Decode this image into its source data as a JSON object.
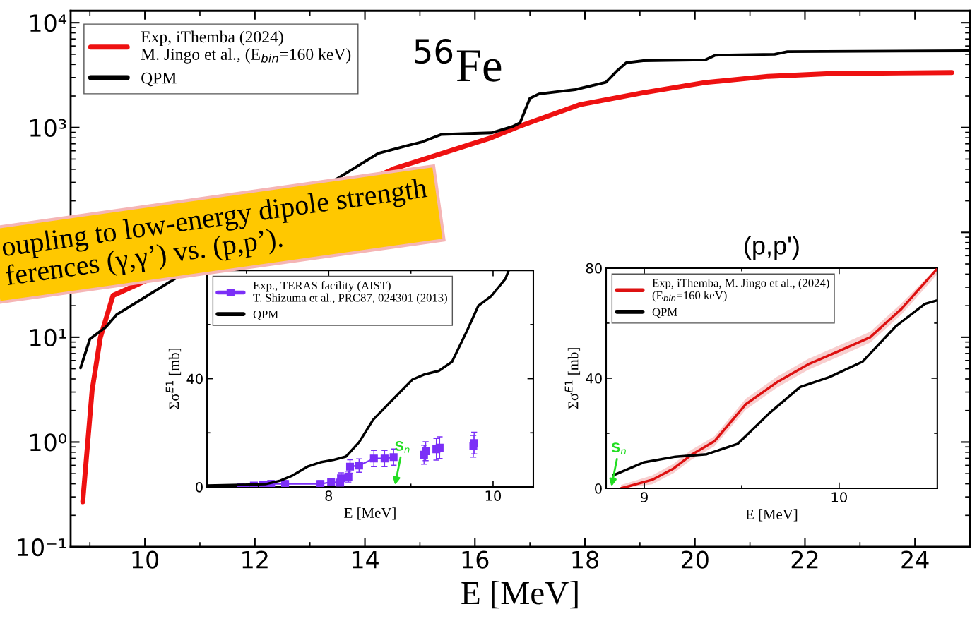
{
  "chart_data": [
    {
      "type": "line",
      "title": "$^{56}$Fe",
      "xlabel": "E [MeV]",
      "log": "y",
      "legend": "top left",
      "grid": false,
      "xlim": [
        8.65,
        25
      ],
      "xticks": [
        {
          "value": 9,
          "label": null
        },
        10,
        {
          "value": 11,
          "label": null
        },
        12,
        {
          "value": 13,
          "label": null
        },
        14,
        {
          "value": 15,
          "label": null
        },
        16,
        {
          "value": 17,
          "label": null
        },
        18,
        {
          "value": 19,
          "label": null
        },
        20,
        {
          "value": 21,
          "label": null
        },
        22,
        {
          "value": 23,
          "label": null
        },
        24
      ],
      "ylim": [
        0.1,
        13000
      ],
      "yticks": [
        {
          "value": 0.1,
          "label": "10⁻¹"
        },
        {
          "value": 1,
          "label": "10⁰"
        },
        {
          "value": 10,
          "label": "10¹"
        },
        {
          "value": 100,
          "label": null
        },
        {
          "value": 1000,
          "label": "10³"
        },
        {
          "value": 10000,
          "label": "10⁴"
        }
      ],
      "annotations": [
        "oupling to low-energy dipole strength\nferences (γ,γ’) vs. (p,p’)."
      ],
      "series": [
        {
          "name": "Exp, iThemba (2024)\nM. Jingo et al., (E$_{bin}$=160 keV)",
          "color": "#ee1111",
          "x": [
            8.87,
            9.04,
            9.19,
            9.42,
            14.53,
            16.3,
            16.79,
            17.92,
            19.06,
            20.19,
            21.33,
            22.46,
            24.67
          ],
          "values": [
            0.27,
            3.1,
            9.9,
            25,
            405,
            800,
            1020,
            1660,
            2150,
            2690,
            3080,
            3275,
            3350
          ]
        },
        {
          "name": "QPM",
          "color": "#000000",
          "x": [
            8.83,
            9.0,
            9.29,
            9.49,
            14.25,
            14.76,
            15.04,
            15.39,
            16.3,
            16.68,
            16.82,
            17.0,
            17.16,
            17.82,
            18.38,
            18.59,
            18.75,
            19.06,
            20.19,
            20.37,
            21.45,
            21.68,
            24.97
          ],
          "values": [
            5.1,
            9.6,
            12.5,
            16.5,
            570,
            670,
            730,
            860,
            890,
            1020,
            1110,
            1900,
            2090,
            2300,
            2700,
            3500,
            4150,
            4340,
            4430,
            4900,
            5000,
            5300,
            5400
          ]
        }
      ]
    },
    {
      "type": "line",
      "xlabel": "E [MeV]",
      "ylabel": "Σσ$^{E1}$ [mb]",
      "legend": "top left",
      "grid": false,
      "xlim": [
        6.52,
        10.49
      ],
      "xticks": [
        {
          "value": 7,
          "label": null
        },
        8,
        {
          "value": 9,
          "label": null
        },
        10
      ],
      "ylim": [
        0,
        80
      ],
      "yticks": [
        0,
        {
          "value": 20,
          "label": null
        },
        40,
        {
          "value": 60,
          "label": null
        },
        {
          "value": 80,
          "label": null
        }
      ],
      "annotations": [
        "S$_{n}$"
      ],
      "series": [
        {
          "name": "Exp., TERAS facility (AIST)\nT. Shizuma et al., PRC87, 024301 (2013)",
          "color": "#7b2ff7",
          "marker": "square",
          "x": [
            6.93,
            7.09,
            7.2,
            7.25,
            7.3,
            7.47,
            7.9,
            8.03,
            8.14,
            8.15,
            8.24,
            8.26,
            8.37,
            8.55,
            8.68,
            8.79,
            8.97,
            9.16,
            9.18,
            9.25,
            9.31,
            9.35,
            9.6,
            9.76,
            9.77
          ],
          "values": [
            0,
            0.5,
            0.6,
            0.8,
            1.1,
            1.1,
            1.1,
            1.8,
            1.6,
            3.2,
            3.8,
            7.5,
            7.9,
            10.5,
            10.5,
            11,
            null,
            11.9,
            13.2,
            null,
            13.9,
            14.5,
            null,
            15,
            16.2
          ],
          "errors": [
            1,
            1,
            1,
            1,
            1.2,
            1.2,
            1.2,
            0.9,
            1.2,
            2,
            2,
            2.5,
            2.5,
            3,
            3,
            3,
            null,
            3.5,
            3.5,
            null,
            4,
            4,
            null,
            4,
            4
          ]
        },
        {
          "name": "QPM",
          "color": "#000000",
          "x": [
            6.52,
            7.23,
            7.41,
            7.56,
            7.75,
            7.9,
            8.06,
            8.21,
            8.37,
            8.54,
            8.77,
            9.02,
            9.17,
            9.34,
            9.5,
            9.68,
            9.82,
            9.98,
            10.15,
            10.19
          ],
          "values": [
            0.5,
            1.0,
            2.3,
            4.2,
            7.6,
            9.1,
            10,
            11.2,
            16.5,
            24.8,
            32,
            39.7,
            41.6,
            42.9,
            46.2,
            57.5,
            66.9,
            70.6,
            76.9,
            80
          ]
        }
      ]
    },
    {
      "type": "line",
      "title": "(p,p')",
      "xlabel": "E [MeV]",
      "ylabel": "Σσ$^{E1}$ [mb]",
      "legend": "top left",
      "grid": false,
      "xlim": [
        8.804,
        10.504
      ],
      "xticks": [
        9,
        {
          "value": 9.5,
          "label": null
        },
        10
      ],
      "ylim": [
        0,
        80
      ],
      "yticks": [
        0,
        {
          "value": 20,
          "label": null
        },
        40,
        {
          "value": 60,
          "label": null
        },
        80
      ],
      "annotations": [
        "S$_{n}$"
      ],
      "series": [
        {
          "name": "Exp, iThemba, M. Jingo et al., (2024)\n(E$_{bin}$=160 keV)",
          "color": "#dd1111",
          "x": [
            8.88,
            9.04,
            9.15,
            9.24,
            9.36,
            9.52,
            9.68,
            9.84,
            10.0,
            10.16,
            10.32,
            10.5
          ],
          "values": [
            0,
            3.1,
            7.2,
            12.1,
            17.1,
            30.5,
            38.5,
            45,
            49.9,
            54.9,
            65.2,
            79.5
          ],
          "lower": [
            0,
            1.5,
            5.5,
            10.3,
            15.3,
            28.5,
            36.5,
            43,
            47.9,
            52.9,
            63.2,
            77.5
          ],
          "upper": [
            1.2,
            4.7,
            8.9,
            13.9,
            18.9,
            32.5,
            40.5,
            47,
            51.9,
            56.9,
            67.2,
            80
          ]
        },
        {
          "name": "QPM",
          "color": "#000000",
          "x": [
            8.84,
            9.0,
            9.16,
            9.32,
            9.48,
            9.64,
            9.8,
            9.95,
            10.12,
            10.29,
            10.44,
            10.5
          ],
          "values": [
            4.7,
            9.5,
            11.5,
            12.4,
            16.2,
            27.2,
            36.8,
            40.4,
            46,
            58.8,
            67,
            68.2
          ]
        }
      ]
    }
  ]
}
